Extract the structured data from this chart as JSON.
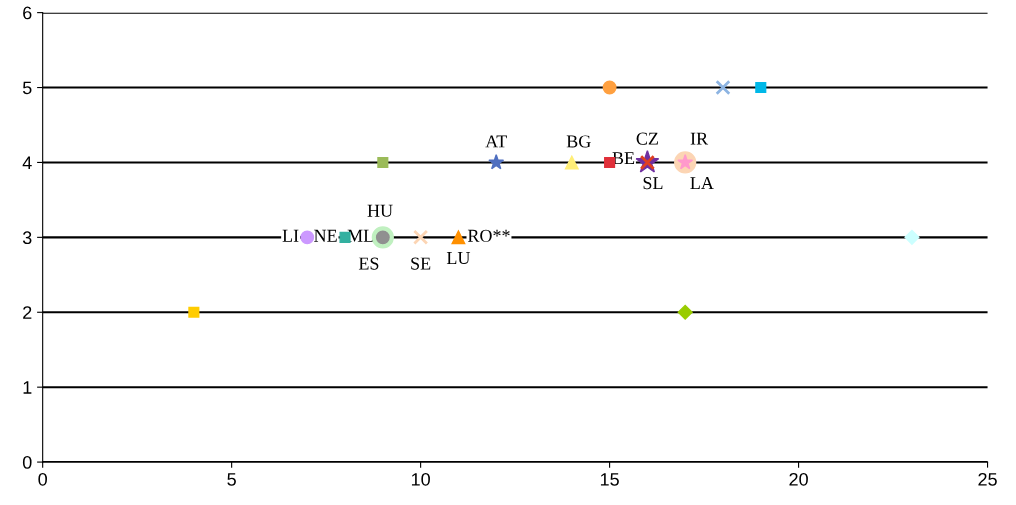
{
  "chart_data": {
    "type": "scatter",
    "xlim": [
      0,
      25
    ],
    "ylim": [
      0,
      6
    ],
    "xticks": [
      0,
      5,
      10,
      15,
      20,
      25
    ],
    "yticks": [
      0,
      1,
      2,
      3,
      4,
      5,
      6
    ],
    "grid": "y",
    "series": [
      {
        "marker": "circle",
        "color": "#ffa040",
        "x": [
          15
        ],
        "values": [
          5
        ]
      },
      {
        "marker": "cross",
        "color": "#8db4e2",
        "x": [
          18
        ],
        "values": [
          5
        ]
      },
      {
        "marker": "square",
        "color": "#00b8e8",
        "x": [
          19
        ],
        "values": [
          5
        ]
      },
      {
        "marker": "square",
        "color": "#9bbb59",
        "x": [
          9
        ],
        "values": [
          4
        ]
      },
      {
        "marker": "star",
        "color": "#4f6fc0",
        "x": [
          12
        ],
        "values": [
          4
        ]
      },
      {
        "marker": "triangle",
        "color": "#ffee77",
        "x": [
          14
        ],
        "values": [
          4
        ]
      },
      {
        "marker": "square",
        "color": "#e0303a",
        "x": [
          15
        ],
        "values": [
          4
        ]
      },
      {
        "marker": "star",
        "color": "#7030a0",
        "x": [
          16
        ],
        "values": [
          4
        ]
      },
      {
        "marker": "cross",
        "color": "#e04020",
        "x": [
          16
        ],
        "values": [
          4
        ]
      },
      {
        "marker": "circle",
        "color": "#fcd5b4",
        "x": [
          17
        ],
        "values": [
          4
        ]
      },
      {
        "marker": "star",
        "color": "#ff99cc",
        "x": [
          17
        ],
        "values": [
          4
        ]
      },
      {
        "marker": "circle",
        "color": "#cc99ff",
        "x": [
          7
        ],
        "values": [
          3
        ]
      },
      {
        "marker": "square",
        "color": "#33b0a0",
        "x": [
          8
        ],
        "values": [
          3
        ]
      },
      {
        "marker": "circle",
        "color": "#c0f0c0",
        "x": [
          9
        ],
        "values": [
          3
        ]
      },
      {
        "marker": "circle",
        "color": "#909090",
        "x": [
          9
        ],
        "values": [
          3
        ]
      },
      {
        "marker": "cross",
        "color": "#fcd5b4",
        "x": [
          10
        ],
        "values": [
          3
        ]
      },
      {
        "marker": "triangle",
        "color": "#ff9000",
        "x": [
          11
        ],
        "values": [
          3
        ]
      },
      {
        "marker": "square",
        "color": "#ffcc00",
        "x": [
          4
        ],
        "values": [
          2
        ]
      },
      {
        "marker": "diamond",
        "color": "#99cc00",
        "x": [
          17
        ],
        "values": [
          2
        ]
      },
      {
        "marker": "diamond",
        "color": "#ccffff",
        "x": [
          23
        ],
        "values": [
          3
        ]
      }
    ],
    "annotations": [
      {
        "text": "AT",
        "x": 12,
        "y": 4
      },
      {
        "text": "BG",
        "x": 14,
        "y": 4
      },
      {
        "text": "BE",
        "x": 15,
        "y": 4
      },
      {
        "text": "CZ",
        "x": 16,
        "y": 4
      },
      {
        "text": "SL",
        "x": 16,
        "y": 4
      },
      {
        "text": "IR",
        "x": 17,
        "y": 4
      },
      {
        "text": "LA",
        "x": 17,
        "y": 4
      },
      {
        "text": "HU",
        "x": 9,
        "y": 3
      },
      {
        "text": "LI",
        "x": 7,
        "y": 3
      },
      {
        "text": "NE",
        "x": 8,
        "y": 3
      },
      {
        "text": "ML",
        "x": 9,
        "y": 3
      },
      {
        "text": "ES",
        "x": 9,
        "y": 3
      },
      {
        "text": "SE",
        "x": 10,
        "y": 3
      },
      {
        "text": "LU",
        "x": 11,
        "y": 3
      },
      {
        "text": "RO**",
        "x": 11,
        "y": 3
      }
    ]
  }
}
